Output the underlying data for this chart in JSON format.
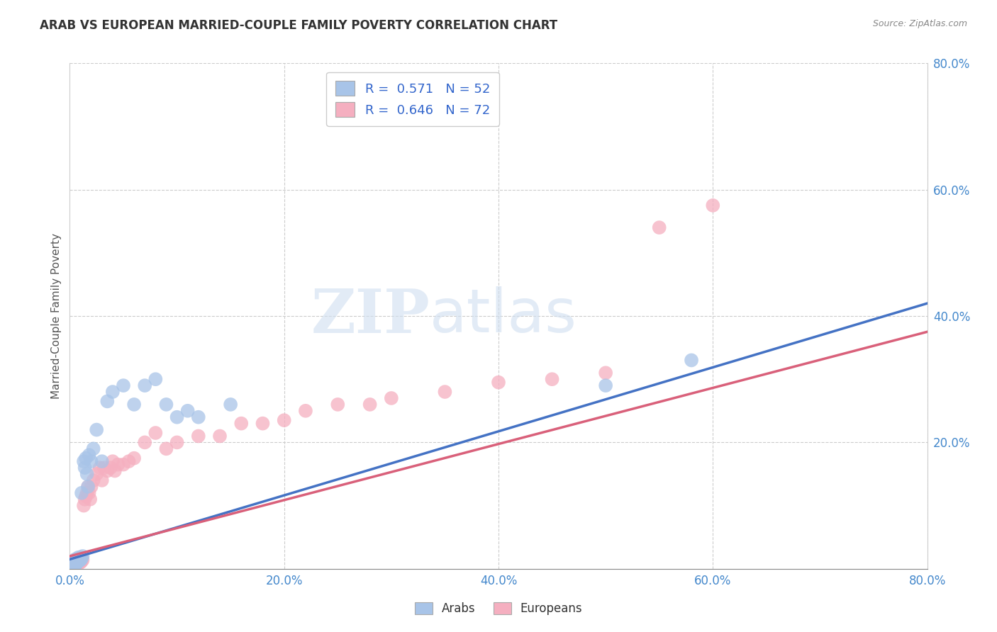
{
  "title": "ARAB VS EUROPEAN MARRIED-COUPLE FAMILY POVERTY CORRELATION CHART",
  "source": "Source: ZipAtlas.com",
  "ylabel": "Married-Couple Family Poverty",
  "xlim": [
    0.0,
    0.8
  ],
  "ylim": [
    0.0,
    0.8
  ],
  "xtick_labels": [
    "0.0%",
    "20.0%",
    "40.0%",
    "60.0%",
    "80.0%"
  ],
  "xtick_vals": [
    0.0,
    0.2,
    0.4,
    0.6,
    0.8
  ],
  "ytick_labels": [
    "20.0%",
    "40.0%",
    "60.0%",
    "80.0%"
  ],
  "ytick_vals": [
    0.2,
    0.4,
    0.6,
    0.8
  ],
  "arab_R": 0.571,
  "arab_N": 52,
  "european_R": 0.646,
  "european_N": 72,
  "arab_color": "#a8c4e8",
  "european_color": "#f5afc0",
  "arab_line_color": "#4472c4",
  "european_line_color": "#d9607a",
  "background_color": "#ffffff",
  "grid_color": "#cccccc",
  "watermark_zip": "ZIP",
  "watermark_atlas": "atlas",
  "arab_x": [
    0.001,
    0.002,
    0.002,
    0.003,
    0.003,
    0.003,
    0.004,
    0.004,
    0.004,
    0.005,
    0.005,
    0.005,
    0.005,
    0.006,
    0.006,
    0.006,
    0.007,
    0.007,
    0.007,
    0.008,
    0.008,
    0.008,
    0.009,
    0.009,
    0.01,
    0.01,
    0.011,
    0.011,
    0.012,
    0.013,
    0.014,
    0.015,
    0.016,
    0.017,
    0.018,
    0.02,
    0.022,
    0.025,
    0.03,
    0.035,
    0.04,
    0.05,
    0.06,
    0.07,
    0.08,
    0.09,
    0.1,
    0.11,
    0.12,
    0.15,
    0.5,
    0.58
  ],
  "arab_y": [
    0.004,
    0.003,
    0.005,
    0.004,
    0.006,
    0.008,
    0.005,
    0.007,
    0.01,
    0.006,
    0.008,
    0.01,
    0.015,
    0.008,
    0.012,
    0.014,
    0.01,
    0.013,
    0.016,
    0.012,
    0.015,
    0.018,
    0.013,
    0.016,
    0.014,
    0.018,
    0.12,
    0.016,
    0.02,
    0.17,
    0.16,
    0.175,
    0.15,
    0.13,
    0.18,
    0.17,
    0.19,
    0.22,
    0.17,
    0.265,
    0.28,
    0.29,
    0.26,
    0.29,
    0.3,
    0.26,
    0.24,
    0.25,
    0.24,
    0.26,
    0.29,
    0.33
  ],
  "european_x": [
    0.001,
    0.001,
    0.002,
    0.002,
    0.002,
    0.003,
    0.003,
    0.003,
    0.003,
    0.004,
    0.004,
    0.004,
    0.004,
    0.005,
    0.005,
    0.005,
    0.006,
    0.006,
    0.006,
    0.007,
    0.007,
    0.007,
    0.008,
    0.008,
    0.008,
    0.009,
    0.009,
    0.01,
    0.01,
    0.011,
    0.011,
    0.012,
    0.013,
    0.014,
    0.015,
    0.016,
    0.017,
    0.018,
    0.019,
    0.02,
    0.022,
    0.025,
    0.028,
    0.03,
    0.032,
    0.035,
    0.038,
    0.04,
    0.042,
    0.045,
    0.05,
    0.055,
    0.06,
    0.07,
    0.08,
    0.09,
    0.1,
    0.12,
    0.14,
    0.16,
    0.18,
    0.2,
    0.22,
    0.25,
    0.28,
    0.3,
    0.35,
    0.4,
    0.45,
    0.5,
    0.55,
    0.6
  ],
  "european_y": [
    0.003,
    0.005,
    0.004,
    0.006,
    0.008,
    0.003,
    0.005,
    0.007,
    0.01,
    0.004,
    0.006,
    0.008,
    0.012,
    0.005,
    0.008,
    0.01,
    0.006,
    0.009,
    0.012,
    0.007,
    0.01,
    0.013,
    0.008,
    0.011,
    0.014,
    0.01,
    0.013,
    0.01,
    0.015,
    0.012,
    0.016,
    0.014,
    0.1,
    0.11,
    0.115,
    0.12,
    0.13,
    0.12,
    0.11,
    0.13,
    0.14,
    0.15,
    0.16,
    0.14,
    0.16,
    0.155,
    0.16,
    0.17,
    0.155,
    0.165,
    0.165,
    0.17,
    0.175,
    0.2,
    0.215,
    0.19,
    0.2,
    0.21,
    0.21,
    0.23,
    0.23,
    0.235,
    0.25,
    0.26,
    0.26,
    0.27,
    0.28,
    0.295,
    0.3,
    0.31,
    0.54,
    0.575
  ]
}
